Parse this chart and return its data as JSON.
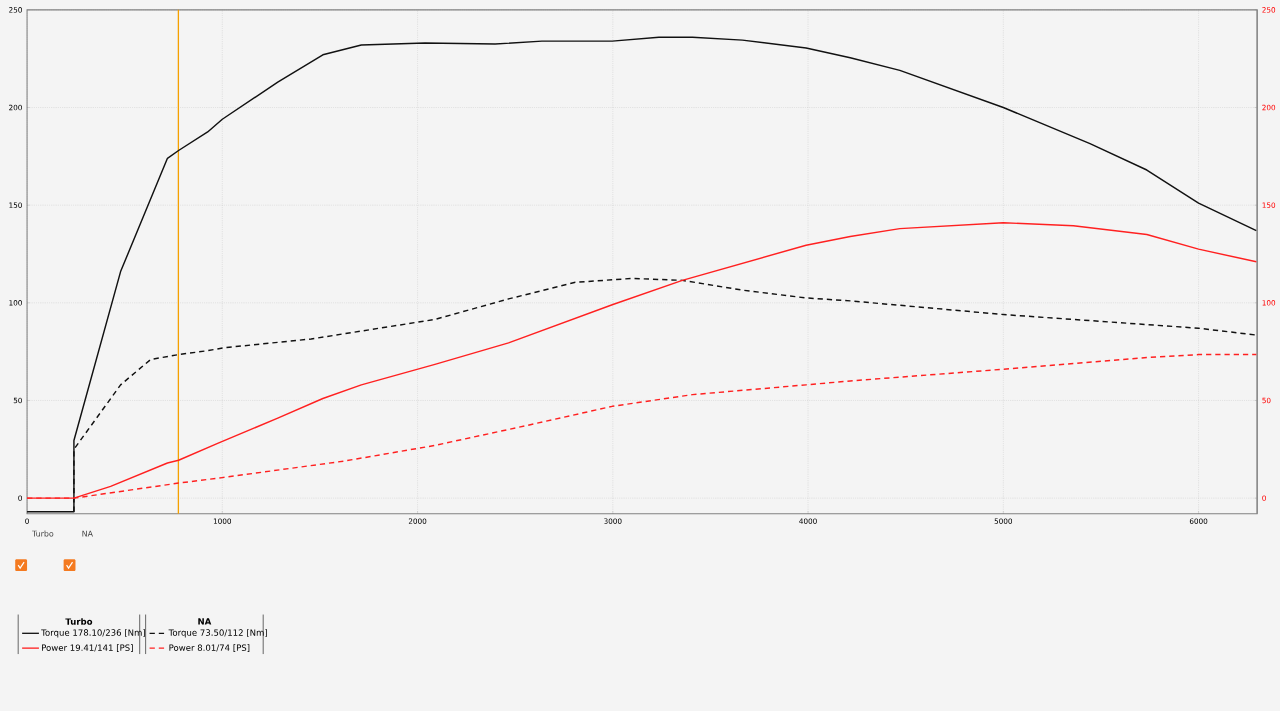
{
  "chart_data": {
    "type": "line",
    "x": [
      0,
      240,
      240,
      479,
      719,
      776,
      925,
      1000,
      1284,
      1515,
      1712,
      2038,
      2397,
      2637,
      2911,
      2997,
      3236,
      3408,
      3664,
      3990,
      4216,
      4470,
      5000,
      5444,
      5735,
      6000,
      6296
    ],
    "series": [
      {
        "name": "Torque 178.10/236 [Nm]",
        "color": "#111111",
        "line_style": "solid",
        "values": [
          -7,
          -7,
          29.5,
          116,
          174,
          178,
          187.5,
          194,
          213,
          227,
          232,
          233,
          232.5,
          234,
          234,
          234,
          236,
          236,
          234.5,
          230.5,
          225.5,
          219,
          200,
          181.5,
          168,
          151,
          137
        ]
      },
      {
        "name": "Power 19.41/141 [PS]",
        "color": "#ff2020",
        "line_style": "solid",
        "axis": "y2",
        "x": [
          0,
          240,
          428,
          719,
          776,
          976,
          1284,
          1515,
          1712,
          2089,
          2466,
          2997,
          3356,
          3990,
          4216,
          4470,
          5000,
          5359,
          5735,
          6000,
          6296
        ],
        "values": [
          0,
          0,
          6,
          18,
          19.4,
          28,
          41,
          51,
          58,
          68.5,
          79.5,
          99,
          111.5,
          129.5,
          134,
          138,
          141,
          139.5,
          135,
          127.5,
          121
        ]
      },
      {
        "name": "Torque 73.50/112 [Nm]",
        "color": "#111111",
        "line_style": "dashed",
        "x": [
          240,
          240,
          479,
          633,
          776,
          925,
          1010,
          1455,
          2089,
          2466,
          2808,
          3099,
          3356,
          3664,
          3990,
          4216,
          5000,
          6000,
          6296
        ],
        "values": [
          -7,
          25,
          58,
          71,
          73.5,
          75.5,
          77,
          81.5,
          91.5,
          102,
          110.5,
          112.5,
          111.5,
          106.5,
          102.5,
          101,
          94,
          87,
          83.5
        ]
      },
      {
        "name": "Power 8.01/74 [PS]",
        "color": "#ff2020",
        "line_style": "dashed",
        "axis": "y2",
        "x": [
          0,
          240,
          776,
          1000,
          1626,
          2089,
          2551,
          2997,
          3408,
          3990,
          4216,
          5000,
          5735,
          6000,
          6296
        ],
        "values": [
          0,
          0,
          7.7,
          10.5,
          19,
          27,
          37,
          47,
          53,
          58,
          60,
          66,
          72,
          73.5,
          73.5
        ]
      }
    ],
    "xlim": [
      0,
      6300
    ],
    "xticks": [
      0,
      1000,
      2000,
      3000,
      4000,
      5000,
      6000
    ],
    "ylim": [
      -8,
      250
    ],
    "yticks": [
      0,
      50,
      100,
      150,
      200,
      250
    ],
    "y2lim": [
      -8,
      250
    ],
    "y2ticks": [
      0,
      50,
      100,
      150,
      200,
      250
    ],
    "ref_lines": [
      {
        "axis": "x",
        "value": 775,
        "color": "#f5a000"
      }
    ],
    "annotations": [
      "Turbo",
      "NA",
      "Turbo",
      "NA"
    ],
    "grid": true,
    "legend": "bottom left"
  }
}
